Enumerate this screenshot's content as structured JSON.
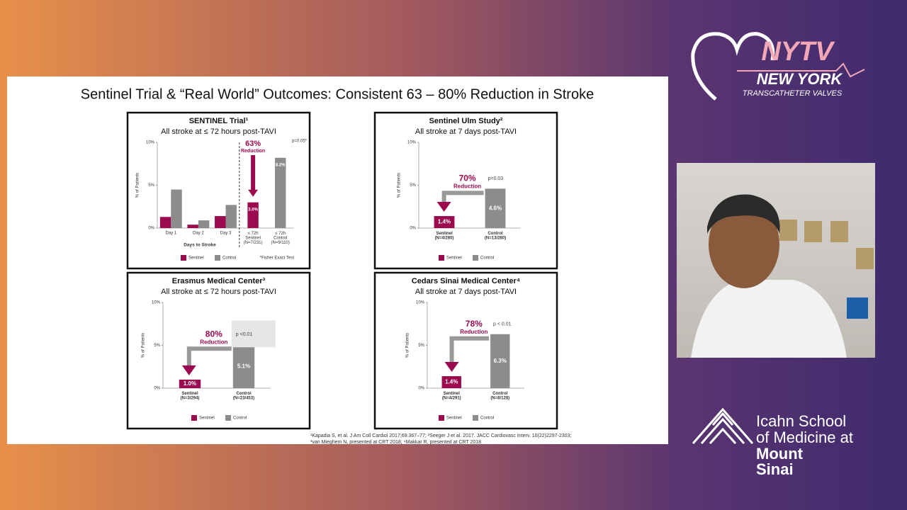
{
  "slide": {
    "title": "Sentinel Trial & “Real World” Outcomes: Consistent 63 – 80% Reduction in Stroke",
    "footnotes": [
      "¹Kapadia S, et al. J Am Coll Cardiol 2017;69:367–77; ²Seeger J et al. 2017. JACC Cardiovasc Interv. 10(22)2297-2303;",
      "³van Mieghem N, presented at CRT 2018; ⁴Makkar R, presented at CRT 2018"
    ]
  },
  "branding": {
    "nytv": "NYTV",
    "new_york": "NEW YORK",
    "tagline": "TRANSCATHETER VALVES",
    "school": [
      "Icahn School",
      "of Medicine at",
      "Mount",
      "Sinai"
    ]
  },
  "chart_data": [
    {
      "type": "bar",
      "title": "SENTINEL Trial¹",
      "subtitle": "All stroke at ≤ 72 hours post-TAVI",
      "y_label": "% of Patients",
      "x_label": "Days to Stroke",
      "categories": [
        "Day 1",
        "Day 2",
        "Day 3",
        "≤ 72h\nSentinel\n(N=7/231)",
        "≤ 72h\nControl\n(N=9/110)"
      ],
      "series": [
        {
          "name": "Sentinel",
          "color": "#9b0a4f",
          "values": [
            1.3,
            0.4,
            1.4,
            3.0,
            null
          ],
          "value_labels": [
            null,
            null,
            null,
            "3.0%",
            null
          ]
        },
        {
          "name": "Control",
          "color": "#8c8c8c",
          "values": [
            4.5,
            0.9,
            2.7,
            null,
            8.2
          ],
          "value_labels": [
            null,
            null,
            null,
            null,
            "8.2%"
          ]
        }
      ],
      "ylim": [
        0,
        10
      ],
      "yticks": [
        {
          "value": 0,
          "label": "0%"
        },
        {
          "value": 5,
          "label": "5%"
        },
        {
          "value": 10,
          "label": "10%"
        }
      ],
      "annotations": {
        "reduction_pct": "63%",
        "reduction_label": "Reduction",
        "p_value": "p=0.05*",
        "footnote": "*Fisher Exact Test"
      }
    },
    {
      "type": "bar",
      "title": "Sentinel Ulm Study²",
      "subtitle": "All stroke at 7 days post-TAVI",
      "y_label": "% of Patients",
      "categories": [
        "Sentinel\n(N=4/280)",
        "Control\n(N=13/280)"
      ],
      "series": [
        {
          "name": "Sentinel",
          "color": "#9b0a4f",
          "values": [
            1.4,
            null
          ],
          "value_labels": [
            "1.4%",
            null
          ]
        },
        {
          "name": "Control",
          "color": "#8c8c8c",
          "values": [
            null,
            4.6
          ],
          "value_labels": [
            null,
            "4.6%"
          ]
        }
      ],
      "ylim": [
        0,
        10
      ],
      "yticks": [
        {
          "value": 0,
          "label": "0%"
        },
        {
          "value": 5,
          "label": "5%"
        },
        {
          "value": 10,
          "label": "10%"
        }
      ],
      "annotations": {
        "reduction_pct": "70%",
        "reduction_label": "Reduction",
        "p_value": "p=0.03"
      }
    },
    {
      "type": "bar",
      "title": "Erasmus Medical Center³",
      "subtitle": "All stroke at ≤ 72 hours post-TAVI",
      "y_label": "% of Patients",
      "categories": [
        "Sentinel\n(N=3/294)",
        "Control\n(N=23/453)"
      ],
      "series": [
        {
          "name": "Sentinel",
          "color": "#9b0a4f",
          "values": [
            1.0,
            null
          ],
          "value_labels": [
            "1.0%",
            null
          ]
        },
        {
          "name": "Control",
          "color": "#8c8c8c",
          "values": [
            null,
            5.1
          ],
          "value_labels": [
            null,
            "5.1%"
          ]
        }
      ],
      "ylim": [
        0,
        10
      ],
      "yticks": [
        {
          "value": 0,
          "label": "0%"
        },
        {
          "value": 5,
          "label": "5%"
        },
        {
          "value": 10,
          "label": "10%"
        }
      ],
      "annotations": {
        "reduction_pct": "80%",
        "reduction_label": "Reduction",
        "p_value": "p <0.01"
      }
    },
    {
      "type": "bar",
      "title": "Cedars Sinai Medical Center⁴",
      "subtitle": "All stroke at 7 days post-TAVI",
      "y_label": "% of Patients",
      "categories": [
        "Sentinel\n(N=4/291)",
        "Control\n(N=8/128)"
      ],
      "series": [
        {
          "name": "Sentinel",
          "color": "#9b0a4f",
          "values": [
            1.4,
            null
          ],
          "value_labels": [
            "1.4%",
            null
          ]
        },
        {
          "name": "Control",
          "color": "#8c8c8c",
          "values": [
            null,
            6.3
          ],
          "value_labels": [
            null,
            "6.3%"
          ]
        }
      ],
      "ylim": [
        0,
        10
      ],
      "yticks": [
        {
          "value": 0,
          "label": "0%"
        },
        {
          "value": 5,
          "label": "5%"
        },
        {
          "value": 10,
          "label": "10%"
        }
      ],
      "annotations": {
        "reduction_pct": "78%",
        "reduction_label": "Reduction",
        "p_value": "p < 0.01"
      }
    }
  ]
}
